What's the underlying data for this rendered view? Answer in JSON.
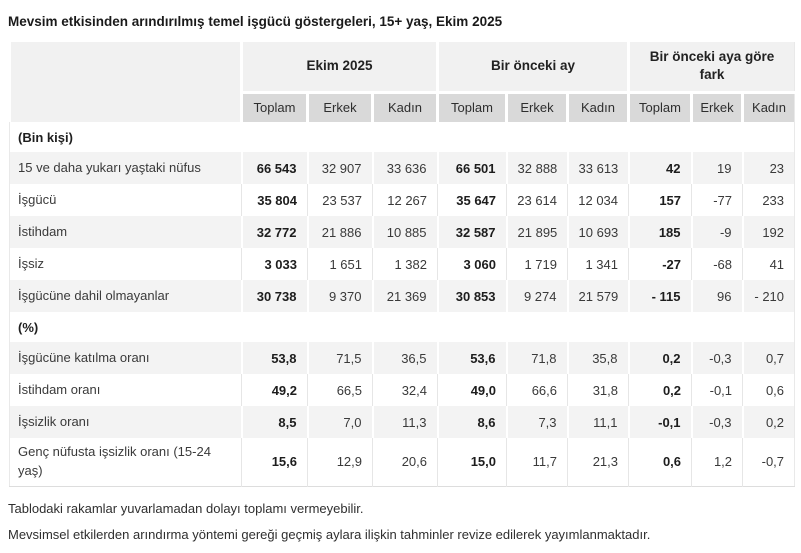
{
  "title": "Mevsim etkisinden arındırılmış temel işgücü göstergeleri, 15+ yaş, Ekim 2025",
  "chart_data": {
    "type": "table",
    "title": "Mevsim etkisinden arındırılmış temel işgücü göstergeleri, 15+ yaş, Ekim 2025",
    "column_groups": [
      "Ekim 2025",
      "Bir önceki ay",
      "Bir önceki aya göre fark"
    ],
    "columns": [
      "Toplam",
      "Erkek",
      "Kadın",
      "Toplam",
      "Erkek",
      "Kadın",
      "Toplam",
      "Erkek",
      "Kadın"
    ],
    "sections": [
      {
        "label": "(Bin kişi)",
        "rows": [
          {
            "label": "15 ve daha yukarı yaştaki nüfus",
            "values": [
              "66 543",
              "32 907",
              "33 636",
              "66 501",
              "32 888",
              "33 613",
              "42",
              "19",
              "23"
            ]
          },
          {
            "label": "İşgücü",
            "values": [
              "35 804",
              "23 537",
              "12 267",
              "35 647",
              "23 614",
              "12 034",
              "157",
              "-77",
              "233"
            ]
          },
          {
            "label": "İstihdam",
            "values": [
              "32 772",
              "21 886",
              "10 885",
              "32 587",
              "21 895",
              "10 693",
              "185",
              "-9",
              "192"
            ]
          },
          {
            "label": "İşsiz",
            "values": [
              "3 033",
              "1 651",
              "1 382",
              "3 060",
              "1 719",
              "1 341",
              "-27",
              "-68",
              "41"
            ]
          },
          {
            "label": "İşgücüne dahil olmayanlar",
            "values": [
              "30 738",
              "9 370",
              "21 369",
              "30 853",
              "9 274",
              "21 579",
              "- 115",
              "96",
              "- 210"
            ]
          }
        ]
      },
      {
        "label": "(%)",
        "rows": [
          {
            "label": "İşgücüne katılma oranı",
            "values": [
              "53,8",
              "71,5",
              "36,5",
              "53,6",
              "71,8",
              "35,8",
              "0,2",
              "-0,3",
              "0,7"
            ]
          },
          {
            "label": "İstihdam oranı",
            "values": [
              "49,2",
              "66,5",
              "32,4",
              "49,0",
              "66,6",
              "31,8",
              "0,2",
              "-0,1",
              "0,6"
            ]
          },
          {
            "label": "İşsizlik oranı",
            "values": [
              "8,5",
              "7,0",
              "11,3",
              "8,6",
              "7,3",
              "11,1",
              "-0,1",
              "-0,3",
              "0,2"
            ]
          },
          {
            "label": "Genç nüfusta işsizlik oranı (15-24 yaş)",
            "values": [
              "15,6",
              "12,9",
              "20,6",
              "15,0",
              "11,7",
              "21,3",
              "0,6",
              "1,2",
              "-0,7"
            ]
          }
        ]
      }
    ],
    "notes": [
      "Tablodaki rakamlar yuvarlamadan dolayı toplamı vermeyebilir.",
      "Mevsimsel etkilerden arındırma yöntemi gereği geçmiş aylara ilişkin tahminler revize edilerek yayımlanmaktadır."
    ]
  },
  "colors": {
    "group_header_bg": "#f1f1f1",
    "sub_header_bg": "#d9d9d9",
    "stripe_bg": "#f3f3f3",
    "grid_line": "#e6e6e6",
    "text": "#3a3a3a",
    "strong_text": "#1d1d1d"
  }
}
